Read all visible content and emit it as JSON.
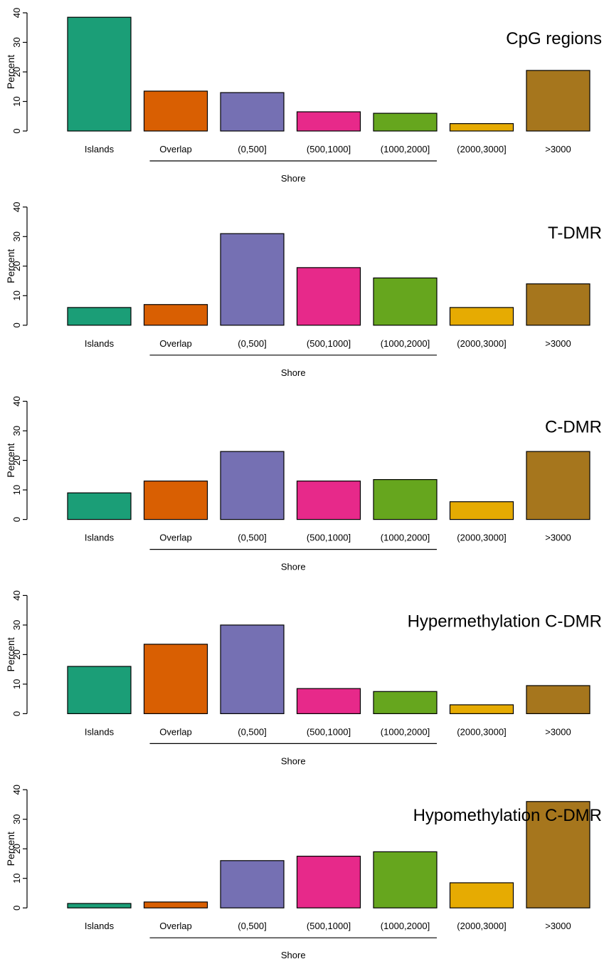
{
  "chart_data": [
    {
      "type": "bar",
      "title": "CpG regions",
      "ylabel": "Percent",
      "ylim": [
        0,
        40
      ],
      "yticks": [
        "0",
        "10",
        "20",
        "30",
        "40"
      ],
      "categories": [
        "Islands",
        "Overlap",
        "(0,500]",
        "(500,1000]",
        "(1000,2000]",
        "(2000,3000]",
        ">3000"
      ],
      "values": [
        38.5,
        13.5,
        13,
        6.5,
        6,
        2.5,
        20.5
      ],
      "group_label": "Shore",
      "colors": [
        "#1b9e77",
        "#d95f02",
        "#7570b3",
        "#e7298a",
        "#66a61e",
        "#e6ab02",
        "#a6761d"
      ],
      "grid": false
    },
    {
      "type": "bar",
      "title": "T-DMR",
      "ylabel": "Percent",
      "ylim": [
        0,
        40
      ],
      "yticks": [
        "0",
        "10",
        "20",
        "30",
        "40"
      ],
      "categories": [
        "Islands",
        "Overlap",
        "(0,500]",
        "(500,1000]",
        "(1000,2000]",
        "(2000,3000]",
        ">3000"
      ],
      "values": [
        6,
        7,
        31,
        19.5,
        16,
        6,
        14
      ],
      "group_label": "Shore",
      "colors": [
        "#1b9e77",
        "#d95f02",
        "#7570b3",
        "#e7298a",
        "#66a61e",
        "#e6ab02",
        "#a6761d"
      ],
      "grid": false
    },
    {
      "type": "bar",
      "title": "C-DMR",
      "ylabel": "Percent",
      "ylim": [
        0,
        40
      ],
      "yticks": [
        "0",
        "10",
        "20",
        "30",
        "40"
      ],
      "categories": [
        "Islands",
        "Overlap",
        "(0,500]",
        "(500,1000]",
        "(1000,2000]",
        "(2000,3000]",
        ">3000"
      ],
      "values": [
        9,
        13,
        23,
        13,
        13.5,
        6,
        23
      ],
      "group_label": "Shore",
      "colors": [
        "#1b9e77",
        "#d95f02",
        "#7570b3",
        "#e7298a",
        "#66a61e",
        "#e6ab02",
        "#a6761d"
      ],
      "grid": false
    },
    {
      "type": "bar",
      "title": "Hypermethylation C-DMR",
      "ylabel": "Percent",
      "ylim": [
        0,
        40
      ],
      "yticks": [
        "0",
        "10",
        "20",
        "30",
        "40"
      ],
      "categories": [
        "Islands",
        "Overlap",
        "(0,500]",
        "(500,1000]",
        "(1000,2000]",
        "(2000,3000]",
        ">3000"
      ],
      "values": [
        16,
        23.5,
        30,
        8.5,
        7.5,
        3,
        9.5
      ],
      "group_label": "Shore",
      "colors": [
        "#1b9e77",
        "#d95f02",
        "#7570b3",
        "#e7298a",
        "#66a61e",
        "#e6ab02",
        "#a6761d"
      ],
      "grid": false
    },
    {
      "type": "bar",
      "title": "Hypomethylation C-DMR",
      "ylabel": "Percent",
      "ylim": [
        0,
        40
      ],
      "yticks": [
        "0",
        "10",
        "20",
        "30",
        "40"
      ],
      "categories": [
        "Islands",
        "Overlap",
        "(0,500]",
        "(500,1000]",
        "(1000,2000]",
        "(2000,3000]",
        ">3000"
      ],
      "values": [
        1.5,
        2,
        16,
        17.5,
        19,
        8.5,
        36
      ],
      "group_label": "Shore",
      "colors": [
        "#1b9e77",
        "#d95f02",
        "#7570b3",
        "#e7298a",
        "#66a61e",
        "#e6ab02",
        "#a6761d"
      ],
      "grid": false
    }
  ]
}
